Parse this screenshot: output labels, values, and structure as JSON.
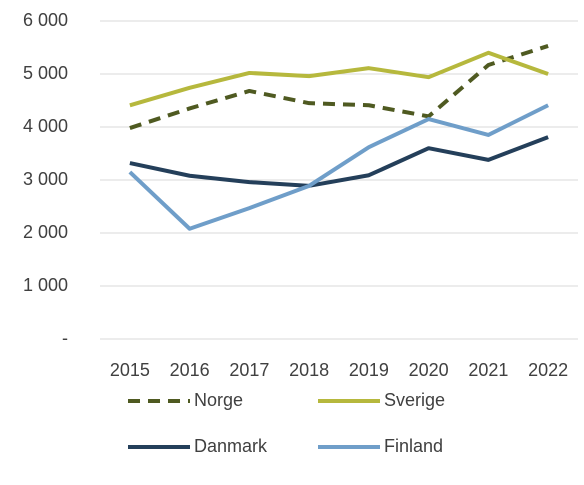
{
  "chart_data": {
    "type": "line",
    "x": [
      2015,
      2016,
      2017,
      2018,
      2019,
      2020,
      2021,
      2022
    ],
    "series": [
      {
        "name": "Norge",
        "color": "#4f5a21",
        "dashed": true,
        "values": [
          3980,
          4350,
          4680,
          4450,
          4410,
          4200,
          5170,
          5530
        ]
      },
      {
        "name": "Sverige",
        "color": "#b6b83d",
        "dashed": false,
        "values": [
          4410,
          4740,
          5020,
          4960,
          5110,
          4940,
          5400,
          5000
        ]
      },
      {
        "name": "Danmark",
        "color": "#243f5a",
        "dashed": false,
        "values": [
          3320,
          3080,
          2960,
          2890,
          3090,
          3600,
          3380,
          3810
        ]
      },
      {
        "name": "Finland",
        "color": "#6f9ec9",
        "dashed": false,
        "values": [
          3150,
          2080,
          2470,
          2890,
          3620,
          4150,
          3850,
          4410
        ]
      }
    ],
    "ylim": [
      0,
      6000
    ],
    "yticks": [
      {
        "value": 0,
        "label": "-"
      },
      {
        "value": 1000,
        "label": "1 000"
      },
      {
        "value": 2000,
        "label": "2 000"
      },
      {
        "value": 3000,
        "label": "3 000"
      },
      {
        "value": 4000,
        "label": "4 000"
      },
      {
        "value": 5000,
        "label": "5 000"
      },
      {
        "value": 6000,
        "label": "6 000"
      }
    ],
    "grid": true,
    "legend": "bottom"
  }
}
